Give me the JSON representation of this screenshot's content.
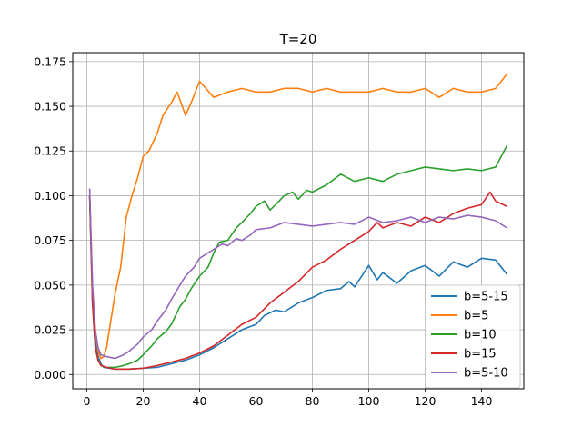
{
  "chart_data": {
    "type": "line",
    "title": "T=20",
    "xlabel": "",
    "ylabel": "",
    "xlim": [
      -5,
      155
    ],
    "ylim": [
      -0.008,
      0.18
    ],
    "grid": true,
    "legend_position": "lower-right",
    "x_ticks": [
      0,
      20,
      40,
      60,
      80,
      100,
      120,
      140
    ],
    "y_ticks": [
      0.0,
      0.025,
      0.05,
      0.075,
      0.1,
      0.125,
      0.15,
      0.175
    ],
    "x_tick_labels": [
      "0",
      "20",
      "40",
      "60",
      "80",
      "100",
      "120",
      "140"
    ],
    "y_tick_labels": [
      "0.000",
      "0.025",
      "0.050",
      "0.075",
      "0.100",
      "0.125",
      "0.150",
      "0.175"
    ],
    "series": [
      {
        "name": "b=5-15",
        "color": "#1f77b4",
        "points": [
          [
            1,
            0.1
          ],
          [
            2,
            0.045
          ],
          [
            3,
            0.02
          ],
          [
            4,
            0.01
          ],
          [
            5,
            0.006
          ],
          [
            6,
            0.004
          ],
          [
            8,
            0.0035
          ],
          [
            10,
            0.003
          ],
          [
            15,
            0.003
          ],
          [
            20,
            0.0035
          ],
          [
            25,
            0.004
          ],
          [
            30,
            0.006
          ],
          [
            35,
            0.008
          ],
          [
            40,
            0.011
          ],
          [
            45,
            0.015
          ],
          [
            50,
            0.02
          ],
          [
            55,
            0.025
          ],
          [
            60,
            0.028
          ],
          [
            63,
            0.033
          ],
          [
            67,
            0.036
          ],
          [
            70,
            0.035
          ],
          [
            75,
            0.04
          ],
          [
            80,
            0.043
          ],
          [
            85,
            0.047
          ],
          [
            90,
            0.048
          ],
          [
            93,
            0.052
          ],
          [
            95,
            0.049
          ],
          [
            100,
            0.061
          ],
          [
            103,
            0.053
          ],
          [
            105,
            0.057
          ],
          [
            110,
            0.051
          ],
          [
            115,
            0.058
          ],
          [
            120,
            0.061
          ],
          [
            125,
            0.055
          ],
          [
            130,
            0.063
          ],
          [
            135,
            0.06
          ],
          [
            140,
            0.065
          ],
          [
            145,
            0.064
          ],
          [
            149,
            0.056
          ]
        ]
      },
      {
        "name": "b=5",
        "color": "#ff7f0e",
        "points": [
          [
            1,
            0.1
          ],
          [
            2,
            0.05
          ],
          [
            3,
            0.025
          ],
          [
            4,
            0.013
          ],
          [
            5,
            0.009
          ],
          [
            6,
            0.01
          ],
          [
            7,
            0.015
          ],
          [
            8,
            0.025
          ],
          [
            10,
            0.045
          ],
          [
            12,
            0.06
          ],
          [
            14,
            0.088
          ],
          [
            16,
            0.1
          ],
          [
            18,
            0.11
          ],
          [
            20,
            0.122
          ],
          [
            22,
            0.125
          ],
          [
            25,
            0.135
          ],
          [
            27,
            0.145
          ],
          [
            30,
            0.152
          ],
          [
            32,
            0.158
          ],
          [
            35,
            0.145
          ],
          [
            37,
            0.152
          ],
          [
            40,
            0.164
          ],
          [
            45,
            0.155
          ],
          [
            50,
            0.158
          ],
          [
            55,
            0.16
          ],
          [
            60,
            0.158
          ],
          [
            65,
            0.158
          ],
          [
            70,
            0.16
          ],
          [
            75,
            0.16
          ],
          [
            80,
            0.158
          ],
          [
            85,
            0.16
          ],
          [
            90,
            0.158
          ],
          [
            95,
            0.158
          ],
          [
            100,
            0.158
          ],
          [
            105,
            0.16
          ],
          [
            110,
            0.158
          ],
          [
            115,
            0.158
          ],
          [
            120,
            0.16
          ],
          [
            125,
            0.155
          ],
          [
            130,
            0.16
          ],
          [
            135,
            0.158
          ],
          [
            140,
            0.158
          ],
          [
            145,
            0.16
          ],
          [
            149,
            0.168
          ]
        ]
      },
      {
        "name": "b=10",
        "color": "#2ca02c",
        "points": [
          [
            1,
            0.1
          ],
          [
            2,
            0.04
          ],
          [
            3,
            0.015
          ],
          [
            4,
            0.008
          ],
          [
            5,
            0.005
          ],
          [
            7,
            0.004
          ],
          [
            10,
            0.004
          ],
          [
            13,
            0.005
          ],
          [
            15,
            0.006
          ],
          [
            18,
            0.008
          ],
          [
            20,
            0.011
          ],
          [
            23,
            0.016
          ],
          [
            25,
            0.02
          ],
          [
            28,
            0.024
          ],
          [
            30,
            0.028
          ],
          [
            33,
            0.038
          ],
          [
            35,
            0.042
          ],
          [
            37,
            0.048
          ],
          [
            40,
            0.055
          ],
          [
            43,
            0.06
          ],
          [
            45,
            0.068
          ],
          [
            47,
            0.074
          ],
          [
            50,
            0.075
          ],
          [
            53,
            0.082
          ],
          [
            55,
            0.085
          ],
          [
            58,
            0.09
          ],
          [
            60,
            0.094
          ],
          [
            63,
            0.097
          ],
          [
            65,
            0.092
          ],
          [
            67,
            0.095
          ],
          [
            70,
            0.1
          ],
          [
            73,
            0.102
          ],
          [
            75,
            0.098
          ],
          [
            78,
            0.103
          ],
          [
            80,
            0.102
          ],
          [
            85,
            0.106
          ],
          [
            90,
            0.112
          ],
          [
            95,
            0.108
          ],
          [
            100,
            0.11
          ],
          [
            105,
            0.108
          ],
          [
            110,
            0.112
          ],
          [
            115,
            0.114
          ],
          [
            120,
            0.116
          ],
          [
            125,
            0.115
          ],
          [
            130,
            0.114
          ],
          [
            135,
            0.115
          ],
          [
            140,
            0.114
          ],
          [
            145,
            0.116
          ],
          [
            149,
            0.128
          ]
        ]
      },
      {
        "name": "b=15",
        "color": "#d62728",
        "points": [
          [
            1,
            0.1
          ],
          [
            2,
            0.04
          ],
          [
            3,
            0.015
          ],
          [
            4,
            0.008
          ],
          [
            5,
            0.005
          ],
          [
            7,
            0.004
          ],
          [
            10,
            0.003
          ],
          [
            15,
            0.003
          ],
          [
            20,
            0.0035
          ],
          [
            25,
            0.005
          ],
          [
            30,
            0.007
          ],
          [
            35,
            0.009
          ],
          [
            40,
            0.012
          ],
          [
            45,
            0.016
          ],
          [
            50,
            0.022
          ],
          [
            55,
            0.028
          ],
          [
            60,
            0.032
          ],
          [
            65,
            0.04
          ],
          [
            70,
            0.046
          ],
          [
            75,
            0.052
          ],
          [
            80,
            0.06
          ],
          [
            85,
            0.064
          ],
          [
            90,
            0.07
          ],
          [
            95,
            0.075
          ],
          [
            100,
            0.08
          ],
          [
            103,
            0.085
          ],
          [
            105,
            0.082
          ],
          [
            110,
            0.085
          ],
          [
            115,
            0.083
          ],
          [
            120,
            0.088
          ],
          [
            125,
            0.085
          ],
          [
            130,
            0.09
          ],
          [
            135,
            0.093
          ],
          [
            140,
            0.095
          ],
          [
            143,
            0.102
          ],
          [
            145,
            0.097
          ],
          [
            149,
            0.094
          ]
        ]
      },
      {
        "name": "b=5-10",
        "color": "#9467bd",
        "points": [
          [
            1,
            0.104
          ],
          [
            2,
            0.05
          ],
          [
            3,
            0.025
          ],
          [
            4,
            0.015
          ],
          [
            5,
            0.011
          ],
          [
            7,
            0.01
          ],
          [
            10,
            0.009
          ],
          [
            13,
            0.011
          ],
          [
            15,
            0.013
          ],
          [
            18,
            0.017
          ],
          [
            20,
            0.021
          ],
          [
            23,
            0.025
          ],
          [
            25,
            0.03
          ],
          [
            28,
            0.036
          ],
          [
            30,
            0.042
          ],
          [
            33,
            0.05
          ],
          [
            35,
            0.055
          ],
          [
            38,
            0.06
          ],
          [
            40,
            0.065
          ],
          [
            43,
            0.068
          ],
          [
            45,
            0.07
          ],
          [
            48,
            0.073
          ],
          [
            50,
            0.072
          ],
          [
            53,
            0.076
          ],
          [
            55,
            0.075
          ],
          [
            58,
            0.078
          ],
          [
            60,
            0.081
          ],
          [
            65,
            0.082
          ],
          [
            70,
            0.085
          ],
          [
            75,
            0.084
          ],
          [
            80,
            0.083
          ],
          [
            85,
            0.084
          ],
          [
            90,
            0.085
          ],
          [
            95,
            0.084
          ],
          [
            100,
            0.088
          ],
          [
            105,
            0.085
          ],
          [
            110,
            0.086
          ],
          [
            115,
            0.088
          ],
          [
            120,
            0.085
          ],
          [
            125,
            0.088
          ],
          [
            130,
            0.087
          ],
          [
            135,
            0.089
          ],
          [
            140,
            0.088
          ],
          [
            145,
            0.086
          ],
          [
            149,
            0.082
          ]
        ]
      }
    ]
  }
}
